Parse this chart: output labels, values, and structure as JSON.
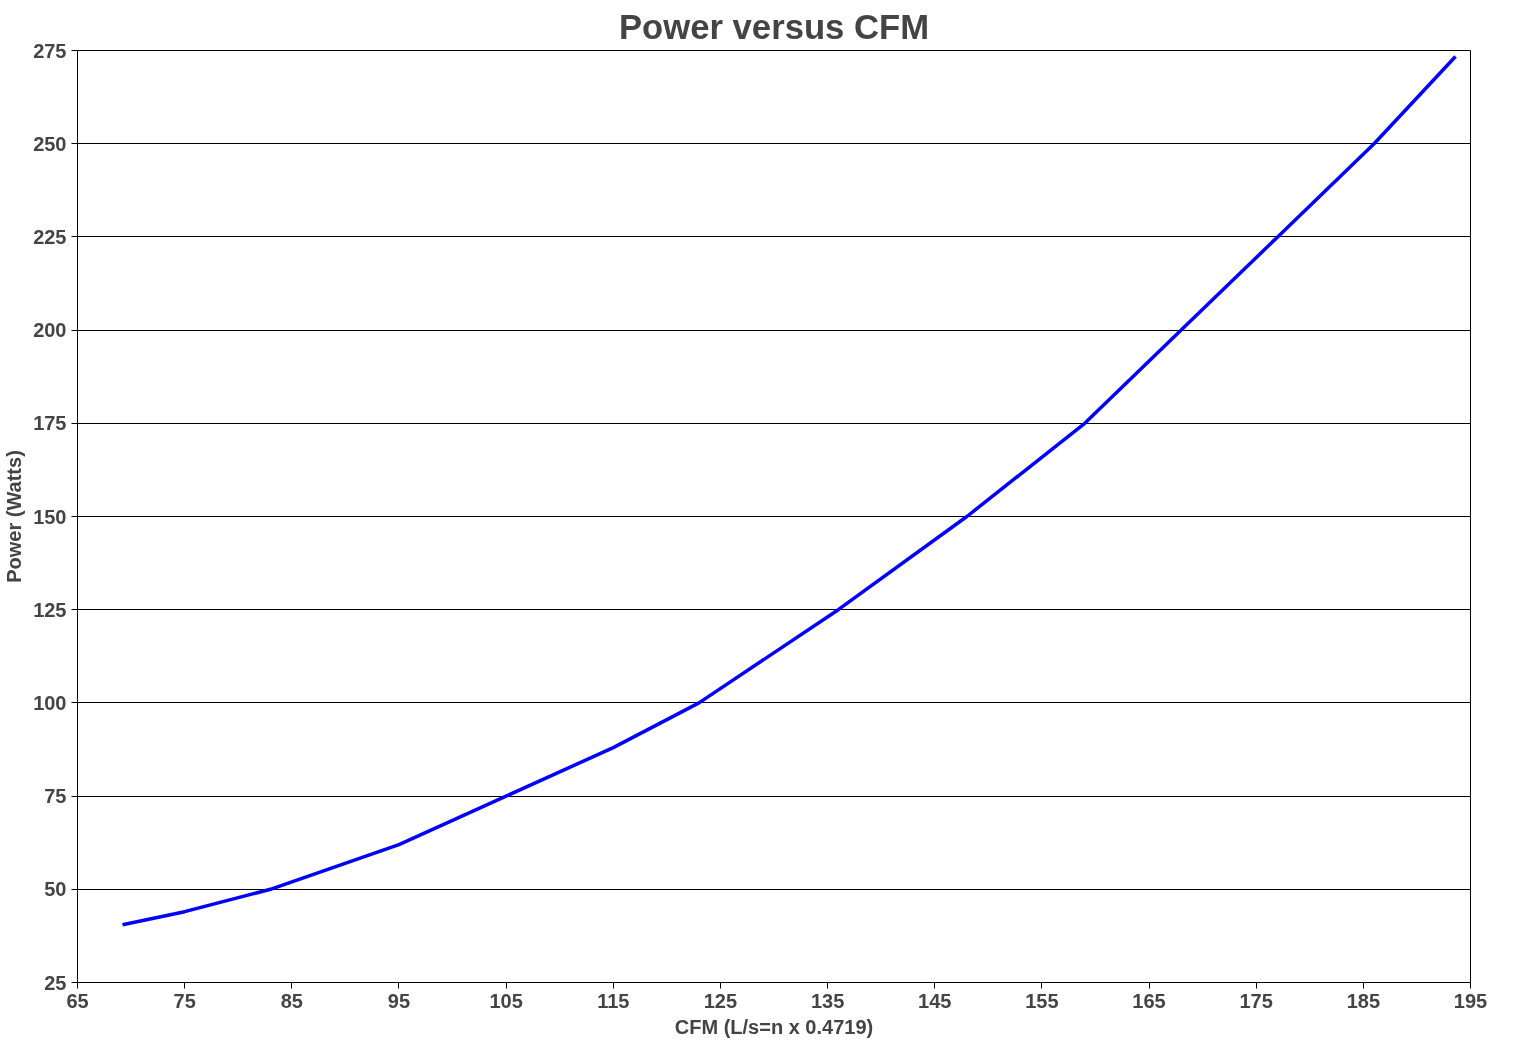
{
  "chart_data": {
    "type": "line",
    "title": "Power versus CFM",
    "xlabel": "CFM (L/s=n x 0.4719)",
    "ylabel": "Power (Watts)",
    "x": [
      69.2,
      75,
      83,
      95,
      105,
      115,
      123,
      136,
      148,
      159,
      168,
      177,
      186,
      193.6
    ],
    "series": [
      {
        "color": "#0000ff",
        "values": [
          40.5,
          44,
          50,
          62,
          75,
          88,
          100,
          125,
          150,
          175,
          200,
          225,
          250,
          273.4
        ]
      }
    ],
    "xlim": [
      65,
      195
    ],
    "xticks": [
      65,
      75,
      85,
      95,
      105,
      115,
      125,
      135,
      145,
      155,
      165,
      175,
      185,
      195
    ],
    "ylim": [
      25,
      275
    ],
    "yticks": [
      25,
      50,
      75,
      100,
      125,
      150,
      175,
      200,
      225,
      250,
      275
    ],
    "grid": "y",
    "marker": "none",
    "line_style": "solid"
  }
}
